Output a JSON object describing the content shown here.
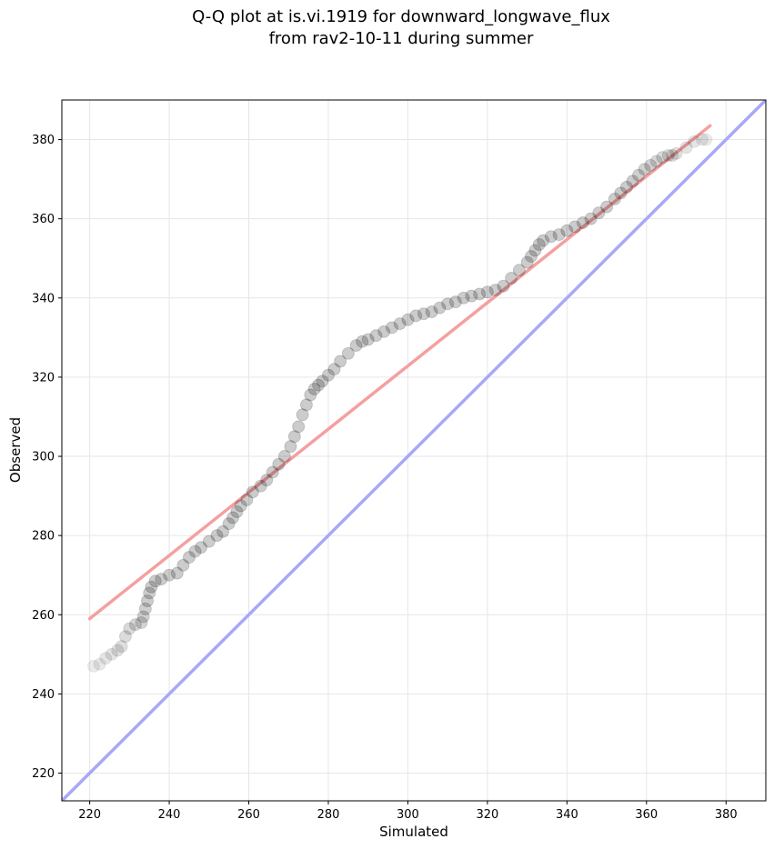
{
  "chart_data": {
    "type": "scatter",
    "title": [
      "Q-Q plot at is.vi.1919 for downward_longwave_flux",
      "from rav2-10-11 during summer"
    ],
    "xlabel": "Simulated",
    "ylabel": "Observed",
    "xlim": [
      213,
      390
    ],
    "ylim": [
      213,
      390
    ],
    "xticks": [
      220,
      240,
      260,
      280,
      300,
      320,
      340,
      360,
      380
    ],
    "yticks": [
      220,
      240,
      260,
      280,
      300,
      320,
      340,
      360,
      380
    ],
    "grid": true,
    "colors": {
      "points": "#000000",
      "fit_line": "#f4a0a0",
      "identity_line": "#a8a8f8",
      "grid": "#e6e6e6"
    },
    "fit_line": {
      "x": [
        220,
        376
      ],
      "y": [
        259,
        383.5
      ]
    },
    "identity_line": {
      "x": [
        213,
        390
      ],
      "y": [
        213,
        390
      ]
    },
    "points": {
      "sim": [
        221,
        222.5,
        224,
        225.5,
        227,
        228,
        229,
        230,
        231.5,
        233,
        233.5,
        234,
        234.5,
        235,
        235.5,
        236.5,
        238,
        240,
        242,
        243.5,
        245,
        246.5,
        248,
        250,
        252,
        253.5,
        255,
        256,
        257,
        258,
        259.5,
        261,
        263,
        264.5,
        266,
        267.5,
        269,
        270.5,
        271.5,
        272.5,
        273.5,
        274.5,
        275.5,
        276.5,
        277.5,
        278.5,
        280,
        281.5,
        283,
        285,
        287,
        288.5,
        290,
        292,
        294,
        296,
        298,
        300,
        302,
        304,
        306,
        308,
        310,
        312,
        314,
        316,
        318,
        320,
        322,
        324,
        326,
        328,
        330,
        331,
        332,
        333,
        334,
        336,
        338,
        340,
        342,
        344,
        346,
        348,
        350,
        352,
        353.5,
        355,
        356.5,
        358,
        359.5,
        361,
        362.5,
        364,
        365.5,
        366.5,
        367.5,
        370,
        372,
        374,
        375
      ],
      "obs": [
        247,
        247.5,
        249,
        250,
        251,
        252,
        254.5,
        256.5,
        257.5,
        258,
        259.5,
        261.5,
        263.5,
        265.5,
        267,
        268.5,
        269,
        270,
        270.5,
        272.5,
        274.5,
        276,
        277,
        278.5,
        280,
        281,
        283,
        284.5,
        286,
        287.5,
        289,
        291,
        292.5,
        294,
        296,
        298,
        300,
        302.5,
        305,
        307.5,
        310.5,
        313,
        315.5,
        317,
        318,
        319,
        320.5,
        322,
        324,
        326,
        328,
        329,
        329.5,
        330.5,
        331.5,
        332.5,
        333.5,
        334.5,
        335.5,
        336,
        336.5,
        337.5,
        338.5,
        339,
        340,
        340.5,
        341,
        341.5,
        342,
        343,
        345,
        347,
        349,
        350.5,
        352,
        353.5,
        354.5,
        355.5,
        356,
        357,
        358,
        359,
        360,
        361.5,
        363,
        365,
        366.5,
        368,
        369.5,
        371,
        372.5,
        373.5,
        374.5,
        375.5,
        376,
        376,
        376.5,
        378,
        379.5,
        380,
        380
      ]
    }
  }
}
